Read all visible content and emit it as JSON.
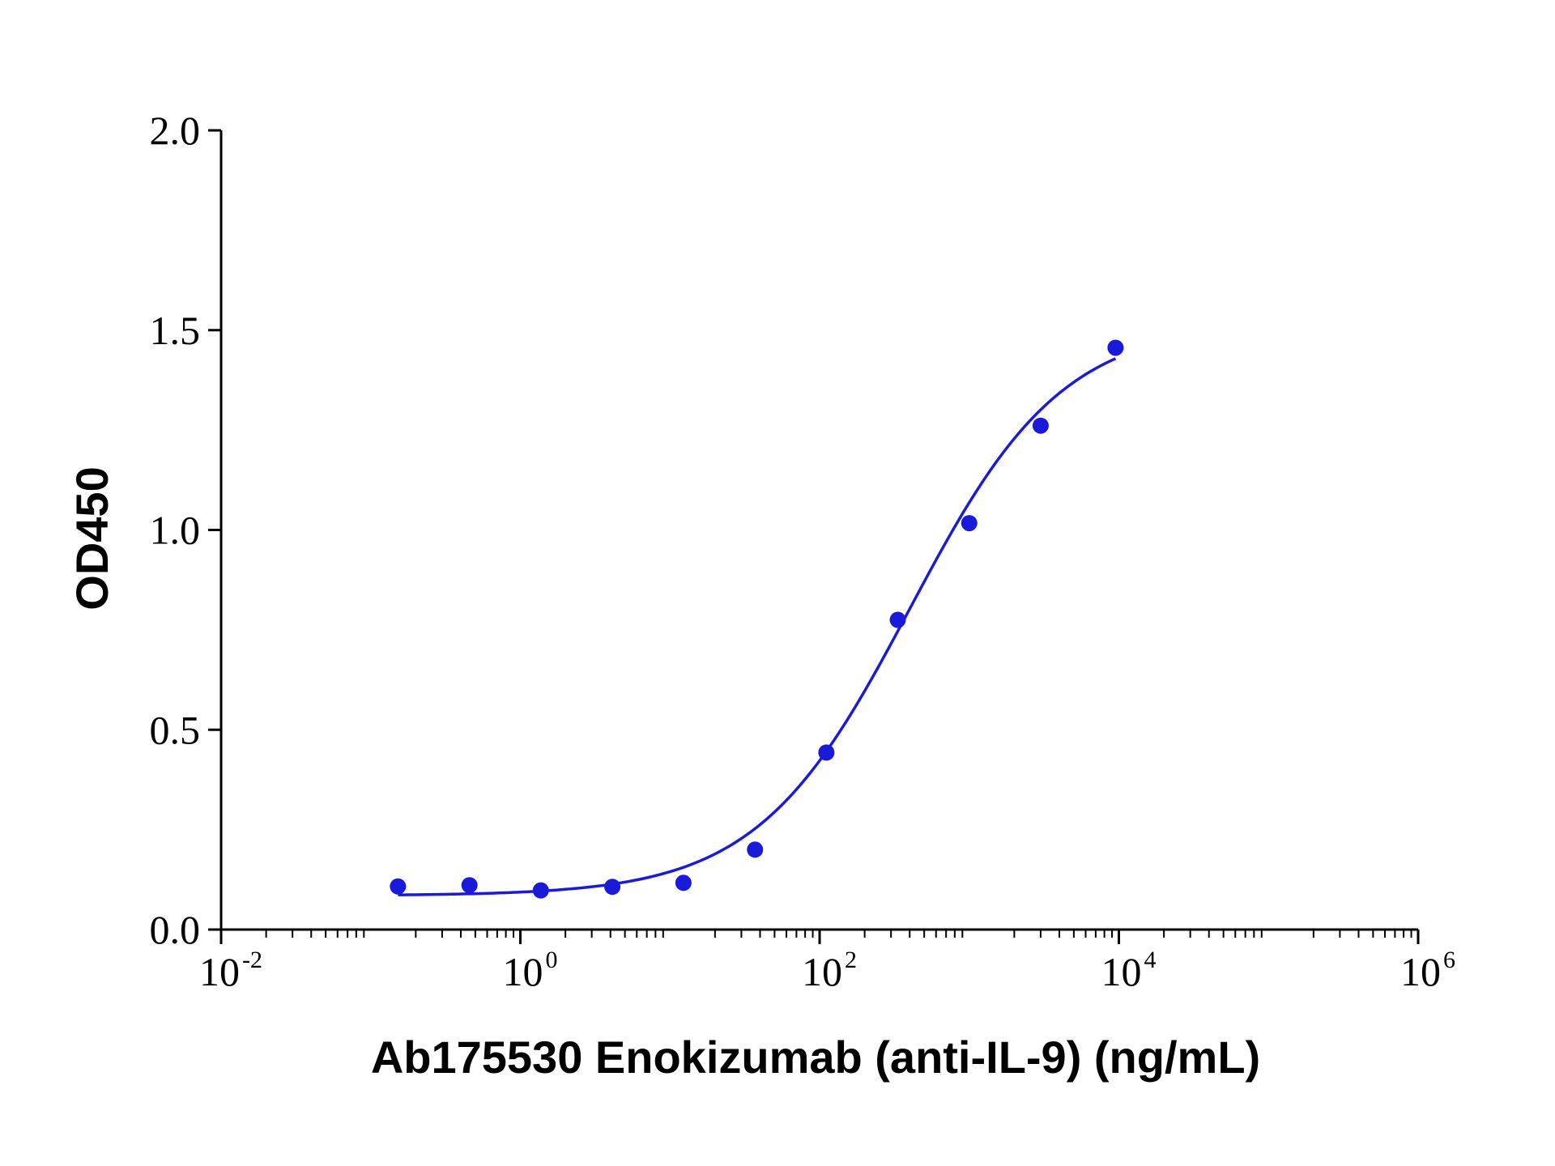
{
  "chart_data": {
    "type": "scatter",
    "xlabel": "Ab175530 Enokizumab (anti-IL-9) (ng/mL)",
    "ylabel": "OD450",
    "x_scale": "log10",
    "xlim": [
      0.01,
      1000000
    ],
    "ylim": [
      0,
      2.0
    ],
    "x_ticks": [
      {
        "base": "10",
        "exp": "-2",
        "value": 0.01
      },
      {
        "base": "10",
        "exp": "0",
        "value": 1
      },
      {
        "base": "10",
        "exp": "2",
        "value": 100
      },
      {
        "base": "10",
        "exp": "4",
        "value": 10000
      },
      {
        "base": "10",
        "exp": "6",
        "value": 1000000
      }
    ],
    "y_ticks": [
      {
        "label": "0.0",
        "value": 0
      },
      {
        "label": "0.5",
        "value": 0.5
      },
      {
        "label": "1.0",
        "value": 1.0
      },
      {
        "label": "1.5",
        "value": 1.5
      },
      {
        "label": "2.0",
        "value": 2.0
      }
    ],
    "grid": false,
    "color": "#1a1adb",
    "series": [
      {
        "points": [
          {
            "x": 0.152,
            "y": 0.108
          },
          {
            "x": 0.457,
            "y": 0.111
          },
          {
            "x": 1.37,
            "y": 0.098
          },
          {
            "x": 4.12,
            "y": 0.107
          },
          {
            "x": 12.3,
            "y": 0.117
          },
          {
            "x": 37.0,
            "y": 0.2
          },
          {
            "x": 111,
            "y": 0.443
          },
          {
            "x": 333,
            "y": 0.775
          },
          {
            "x": 1000,
            "y": 1.017
          },
          {
            "x": 3000,
            "y": 1.261
          },
          {
            "x": 9500,
            "y": 1.456
          }
        ],
        "fit": {
          "model": "4PL",
          "bottom": 0.085,
          "top": 1.52,
          "ec50": 400,
          "hill": 0.85
        }
      }
    ]
  }
}
